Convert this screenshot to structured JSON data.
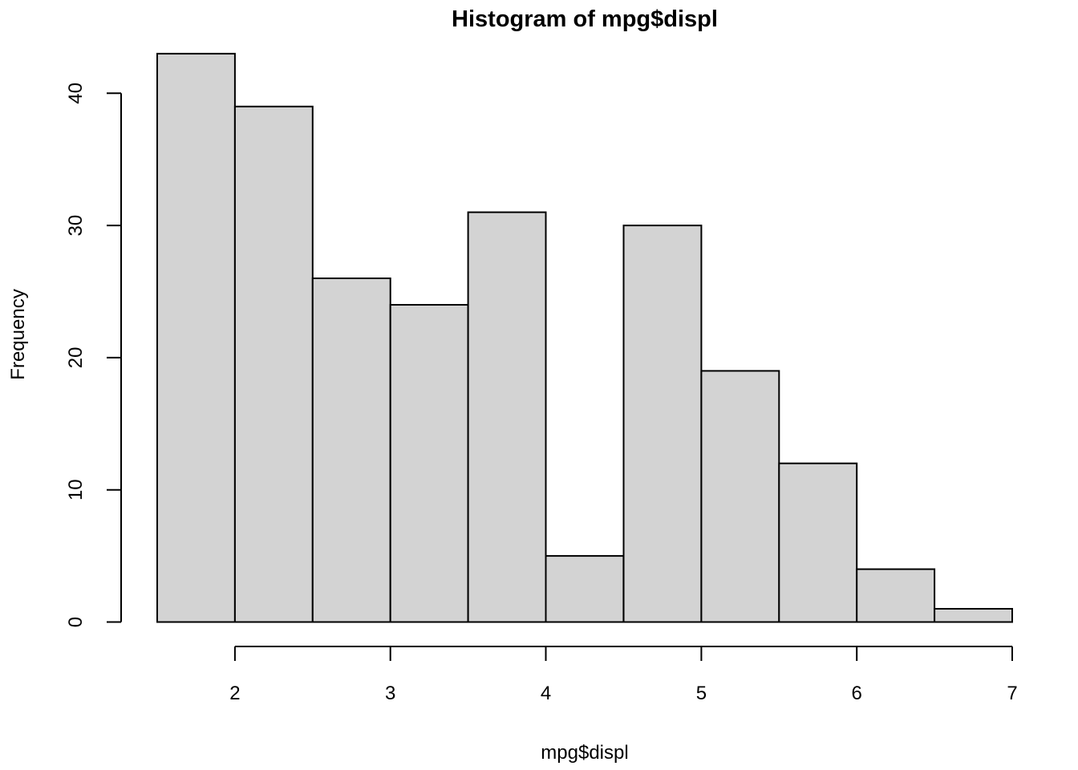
{
  "chart_data": {
    "type": "bar",
    "subtype": "histogram",
    "title": "Histogram of mpg$displ",
    "xlabel": "mpg$displ",
    "ylabel": "Frequency",
    "bin_start": 1.5,
    "bin_width": 0.5,
    "bin_edges": [
      1.5,
      2.0,
      2.5,
      3.0,
      3.5,
      4.0,
      4.5,
      5.0,
      5.5,
      6.0,
      6.5,
      7.0
    ],
    "counts": [
      43,
      39,
      26,
      24,
      31,
      5,
      30,
      19,
      12,
      4,
      1
    ],
    "x_ticks": [
      2,
      3,
      4,
      5,
      6,
      7
    ],
    "y_ticks": [
      0,
      10,
      20,
      30,
      40
    ],
    "xlim": [
      1.5,
      7.0
    ],
    "ylim": [
      0,
      43
    ],
    "grid": false,
    "legend": "none",
    "bar_fill": "#d3d3d3",
    "bar_stroke": "#000000",
    "axis_color": "#000000",
    "background": "#ffffff"
  }
}
